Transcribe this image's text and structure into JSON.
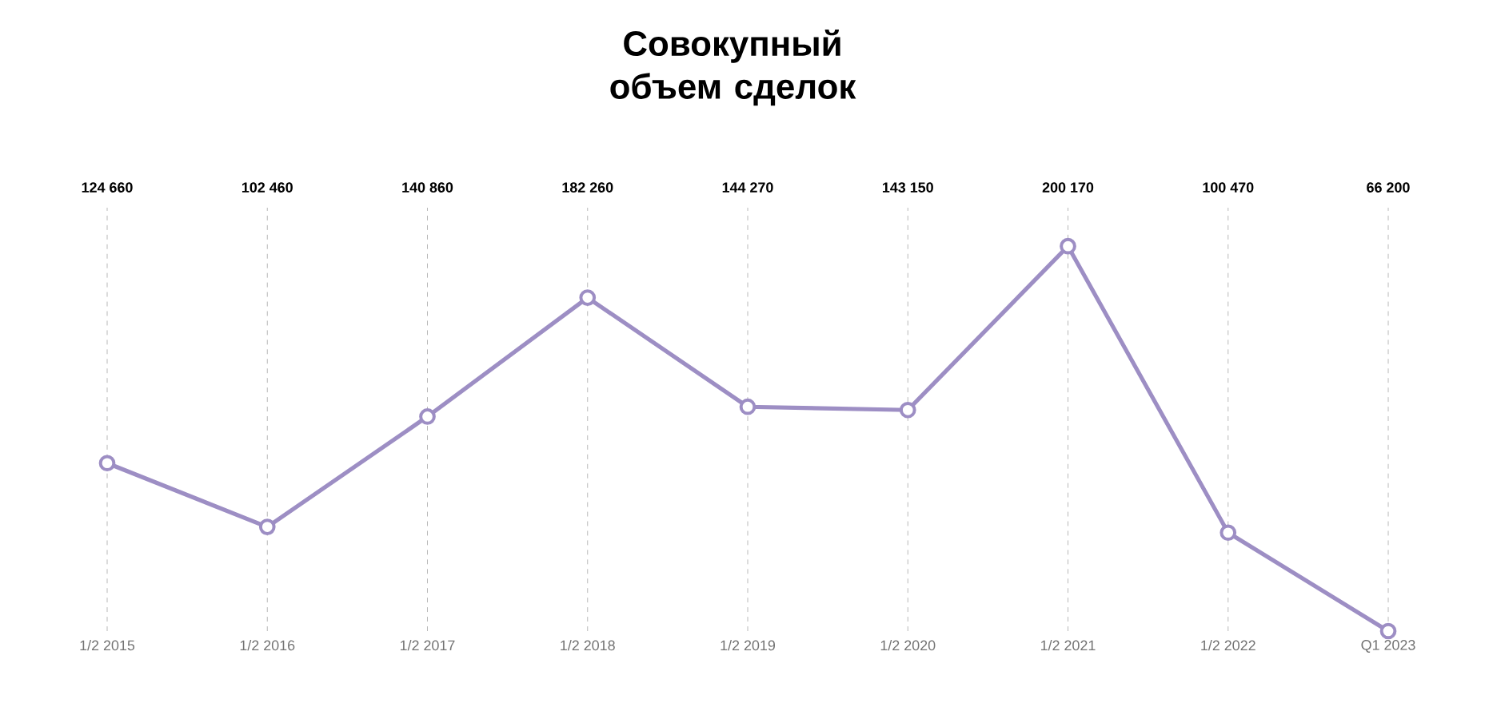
{
  "chart_data": {
    "type": "line",
    "title": "Совокупный объем сделок",
    "categories": [
      "1/2 2015",
      "1/2 2016",
      "1/2 2017",
      "1/2 2018",
      "1/2 2019",
      "1/2 2020",
      "1/2 2021",
      "1/2 2022",
      "Q1 2023"
    ],
    "series": [
      {
        "color": "#9d8ec4",
        "values": [
          124660,
          102460,
          140860,
          182260,
          144270,
          143150,
          200170,
          100470,
          66200
        ],
        "value_labels": [
          "124 660",
          "102 460",
          "140 860",
          "182 260",
          "144 270",
          "143 150",
          "200 170",
          "100 470",
          "66 200"
        ]
      }
    ],
    "tick_labels": "x",
    "grid": "x",
    "marker": "circle",
    "line_style": "solid"
  }
}
